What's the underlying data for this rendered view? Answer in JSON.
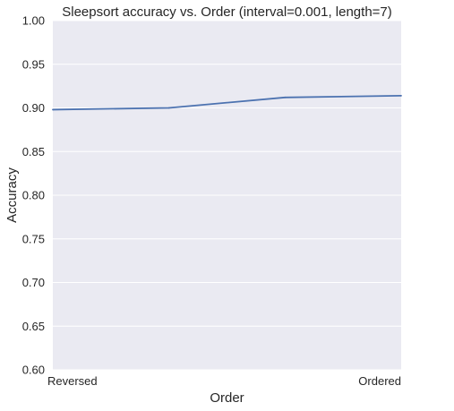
{
  "chart_data": {
    "type": "line",
    "title": "Sleepsort accuracy vs. Order (interval=0.001, length=7)",
    "xlabel": "Order",
    "ylabel": "Accuracy",
    "categories": [
      "Reversed",
      "",
      "",
      "Ordered"
    ],
    "x_tick_labels": [
      "Reversed",
      "Ordered"
    ],
    "series": [
      {
        "values": [
          0.898,
          0.9,
          0.912,
          0.914
        ]
      }
    ],
    "ylim": [
      0.6,
      1.0
    ],
    "y_ticks": [
      "0.60",
      "0.65",
      "0.70",
      "0.75",
      "0.80",
      "0.85",
      "0.90",
      "0.95",
      "1.00"
    ],
    "grid": true,
    "colors": {
      "plot_background": "#eaeaf2",
      "grid": "#ffffff",
      "line": "#4c72b0"
    }
  }
}
